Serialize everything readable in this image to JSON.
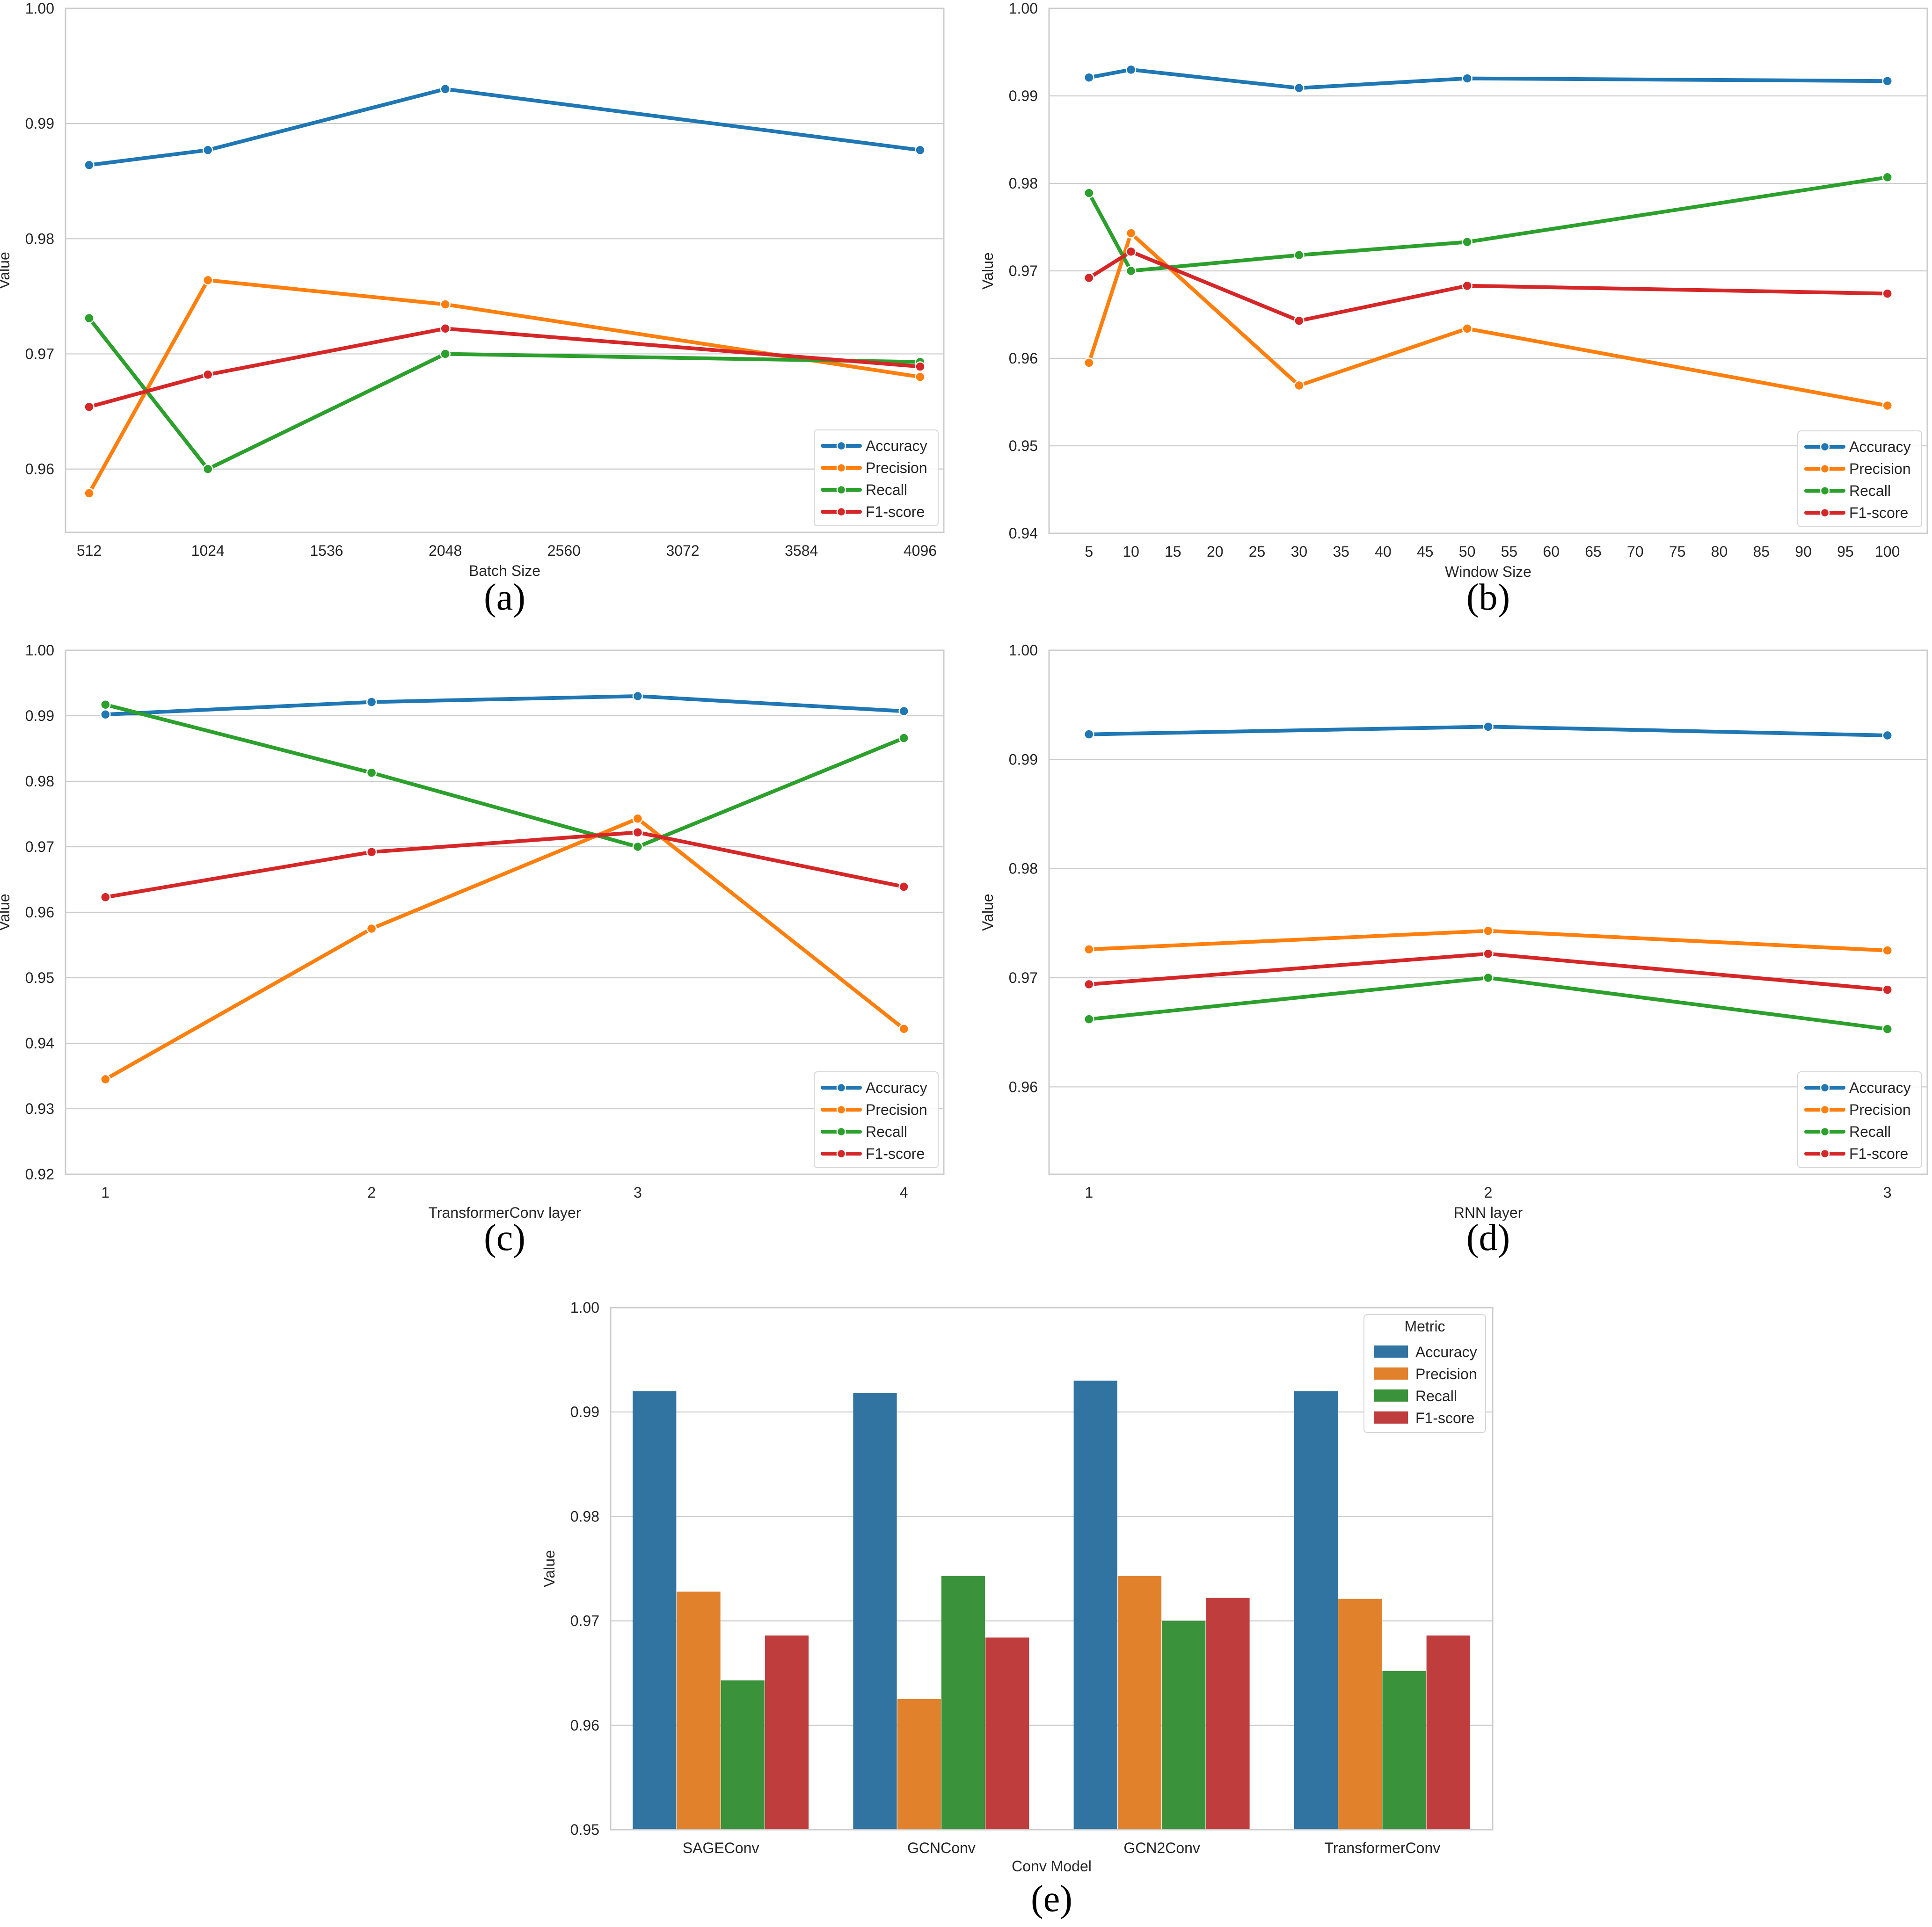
{
  "chart_data": [
    {
      "id": "a",
      "type": "line",
      "caption": "(a)",
      "xlabel": "Batch Size",
      "ylabel": "Value",
      "x_scale": "linear",
      "xlim": [
        410,
        4198
      ],
      "xticks": [
        512,
        1024,
        1536,
        2048,
        2560,
        3072,
        3584,
        4096
      ],
      "xtick_labels": [
        "512",
        "1024",
        "1536",
        "2048",
        "2560",
        "3072",
        "3584",
        "4096"
      ],
      "ylim": [
        0.9545,
        1.0
      ],
      "yticks": [
        0.96,
        0.97,
        0.98,
        0.99,
        1.0
      ],
      "ytick_labels": [
        "0.96",
        "0.97",
        "0.98",
        "0.99",
        "1.00"
      ],
      "x": [
        512,
        1024,
        2048,
        4096
      ],
      "legend_position": "lower-right",
      "series": [
        {
          "name": "Accuracy",
          "values": [
            0.9864,
            0.9877,
            0.993,
            0.9877
          ]
        },
        {
          "name": "Precision",
          "values": [
            0.9579,
            0.9764,
            0.9743,
            0.968
          ]
        },
        {
          "name": "Recall",
          "values": [
            0.9731,
            0.96,
            0.97,
            0.9693
          ]
        },
        {
          "name": "F1-score",
          "values": [
            0.9654,
            0.9682,
            0.9722,
            0.9689
          ]
        }
      ]
    },
    {
      "id": "b",
      "type": "line",
      "caption": "(b)",
      "xlabel": "Window Size",
      "ylabel": "Value",
      "x_scale": "linear",
      "xlim": [
        0.25,
        104.75
      ],
      "xticks": [
        5,
        10,
        15,
        20,
        25,
        30,
        35,
        40,
        45,
        50,
        55,
        60,
        65,
        70,
        75,
        80,
        85,
        90,
        95,
        100
      ],
      "xtick_labels": [
        "5",
        "10",
        "15",
        "20",
        "25",
        "30",
        "35",
        "40",
        "45",
        "50",
        "55",
        "60",
        "65",
        "70",
        "75",
        "80",
        "85",
        "90",
        "95",
        "100"
      ],
      "ylim": [
        0.94,
        1.0
      ],
      "yticks": [
        0.94,
        0.95,
        0.96,
        0.97,
        0.98,
        0.99,
        1.0
      ],
      "ytick_labels": [
        "0.94",
        "0.95",
        "0.96",
        "0.97",
        "0.98",
        "0.99",
        "1.00"
      ],
      "x": [
        5,
        10,
        30,
        50,
        100
      ],
      "legend_position": "lower-right",
      "series": [
        {
          "name": "Accuracy",
          "values": [
            0.9921,
            0.993,
            0.9909,
            0.992,
            0.9917
          ]
        },
        {
          "name": "Precision",
          "values": [
            0.9595,
            0.9743,
            0.9569,
            0.9634,
            0.9546
          ]
        },
        {
          "name": "Recall",
          "values": [
            0.9789,
            0.97,
            0.9718,
            0.9733,
            0.9807
          ]
        },
        {
          "name": "F1-score",
          "values": [
            0.9692,
            0.9722,
            0.9643,
            0.9683,
            0.9674
          ]
        }
      ]
    },
    {
      "id": "c",
      "type": "line",
      "caption": "(c)",
      "xlabel": "TransformerConv layer",
      "ylabel": "Value",
      "x_scale": "linear",
      "xlim": [
        0.85,
        4.15
      ],
      "xticks": [
        1,
        2,
        3,
        4
      ],
      "xtick_labels": [
        "1",
        "2",
        "3",
        "4"
      ],
      "ylim": [
        0.92,
        1.0
      ],
      "yticks": [
        0.92,
        0.93,
        0.94,
        0.95,
        0.96,
        0.97,
        0.98,
        0.99,
        1.0
      ],
      "ytick_labels": [
        "0.92",
        "0.93",
        "0.94",
        "0.95",
        "0.96",
        "0.97",
        "0.98",
        "0.99",
        "1.00"
      ],
      "x": [
        1,
        2,
        3,
        4
      ],
      "legend_position": "lower-right",
      "series": [
        {
          "name": "Accuracy",
          "values": [
            0.9902,
            0.9921,
            0.993,
            0.9907
          ]
        },
        {
          "name": "Precision",
          "values": [
            0.9345,
            0.9575,
            0.9743,
            0.9422
          ]
        },
        {
          "name": "Recall",
          "values": [
            0.9917,
            0.9813,
            0.97,
            0.9866
          ]
        },
        {
          "name": "F1-score",
          "values": [
            0.9623,
            0.9692,
            0.9722,
            0.9639
          ]
        }
      ]
    },
    {
      "id": "d",
      "type": "line",
      "caption": "(d)",
      "xlabel": "RNN layer",
      "ylabel": "Value",
      "x_scale": "linear",
      "xlim": [
        0.9,
        3.1
      ],
      "xticks": [
        1,
        2,
        3
      ],
      "xtick_labels": [
        "1",
        "2",
        "3"
      ],
      "ylim": [
        0.952,
        1.0
      ],
      "yticks": [
        0.96,
        0.97,
        0.98,
        0.99,
        1.0
      ],
      "ytick_labels": [
        "0.96",
        "0.97",
        "0.98",
        "0.99",
        "1.00"
      ],
      "x": [
        1,
        2,
        3
      ],
      "legend_position": "lower-right",
      "series": [
        {
          "name": "Accuracy",
          "values": [
            0.9923,
            0.993,
            0.9922
          ]
        },
        {
          "name": "Precision",
          "values": [
            0.9726,
            0.9743,
            0.9725
          ]
        },
        {
          "name": "Recall",
          "values": [
            0.9662,
            0.97,
            0.9653
          ]
        },
        {
          "name": "F1-score",
          "values": [
            0.9694,
            0.9722,
            0.9689
          ]
        }
      ]
    },
    {
      "id": "e",
      "type": "bar",
      "caption": "(e)",
      "xlabel": "Conv Model",
      "ylabel": "Value",
      "categories": [
        "SAGEConv",
        "GCNConv",
        "GCN2Conv",
        "TransformerConv"
      ],
      "ylim": [
        0.95,
        1.0
      ],
      "yticks": [
        0.95,
        0.96,
        0.97,
        0.98,
        0.99,
        1.0
      ],
      "ytick_labels": [
        "0.95",
        "0.96",
        "0.97",
        "0.98",
        "0.99",
        "1.00"
      ],
      "legend_title": "Metric",
      "legend_position": "top-right",
      "series": [
        {
          "name": "Accuracy",
          "values": [
            0.992,
            0.9918,
            0.993,
            0.992
          ]
        },
        {
          "name": "Precision",
          "values": [
            0.9728,
            0.9625,
            0.9743,
            0.9721
          ]
        },
        {
          "name": "Recall",
          "values": [
            0.9643,
            0.9743,
            0.97,
            0.9652
          ]
        },
        {
          "name": "F1-score",
          "values": [
            0.9686,
            0.9684,
            0.9722,
            0.9686
          ]
        }
      ]
    }
  ],
  "colors": {
    "line": {
      "Accuracy": "#1f77b4",
      "Precision": "#ff7f0e",
      "Recall": "#2ca02c",
      "F1-score": "#d62728"
    },
    "bar": {
      "Accuracy": "#3274a1",
      "Precision": "#e1812c",
      "Recall": "#3a923a",
      "F1-score": "#c03d3e"
    }
  }
}
